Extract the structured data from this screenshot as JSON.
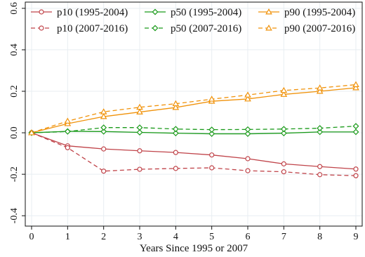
{
  "chart_data": {
    "type": "line",
    "title": "",
    "xlabel": "Years Since 1995 or 2007",
    "ylabel": "",
    "x": [
      0,
      1,
      2,
      3,
      4,
      5,
      6,
      7,
      8,
      9
    ],
    "xlim": [
      0,
      9
    ],
    "ylim": [
      -0.45,
      0.63
    ],
    "x_ticks": [
      0,
      1,
      2,
      3,
      4,
      5,
      6,
      7,
      8,
      9
    ],
    "x_tick_labels": [
      "0",
      "1",
      "2",
      "3",
      "4",
      "5",
      "6",
      "7",
      "8",
      "9"
    ],
    "y_ticks": [
      -0.4,
      -0.2,
      0.0,
      0.2,
      0.4,
      0.6
    ],
    "y_tick_labels": [
      "-0.4",
      "-0.2",
      "0.0",
      "0.2",
      "0.4",
      "0.6"
    ],
    "grid": true,
    "legend_position": "top",
    "series": [
      {
        "name": "p10 (1995-2004)",
        "color": "#c0444a",
        "dash": "solid",
        "marker": "circle",
        "values": [
          0,
          -0.063,
          -0.078,
          -0.087,
          -0.095,
          -0.107,
          -0.125,
          -0.15,
          -0.163,
          -0.175
        ]
      },
      {
        "name": "p50 (1995-2004)",
        "color": "#1a9a1a",
        "dash": "solid",
        "marker": "diamond",
        "values": [
          0,
          0.007,
          0.006,
          0.002,
          -0.002,
          -0.005,
          -0.005,
          -0.002,
          0.004,
          0.004
        ]
      },
      {
        "name": "p90 (1995-2004)",
        "color": "#f0920a",
        "dash": "solid",
        "marker": "triangle",
        "values": [
          0,
          0.044,
          0.078,
          0.1,
          0.122,
          0.152,
          0.163,
          0.185,
          0.2,
          0.217
        ]
      },
      {
        "name": "p10 (2007-2016)",
        "color": "#c0444a",
        "dash": "dashed",
        "marker": "circle",
        "values": [
          0,
          -0.072,
          -0.185,
          -0.176,
          -0.172,
          -0.169,
          -0.183,
          -0.188,
          -0.202,
          -0.207
        ]
      },
      {
        "name": "p50 (2007-2016)",
        "color": "#1a9a1a",
        "dash": "dashed",
        "marker": "diamond",
        "values": [
          0,
          0.006,
          0.025,
          0.025,
          0.018,
          0.015,
          0.016,
          0.018,
          0.022,
          0.032
        ]
      },
      {
        "name": "p90 (2007-2016)",
        "color": "#f0920a",
        "dash": "dashed",
        "marker": "triangle",
        "values": [
          0,
          0.056,
          0.101,
          0.123,
          0.14,
          0.162,
          0.182,
          0.204,
          0.216,
          0.232
        ]
      }
    ]
  }
}
